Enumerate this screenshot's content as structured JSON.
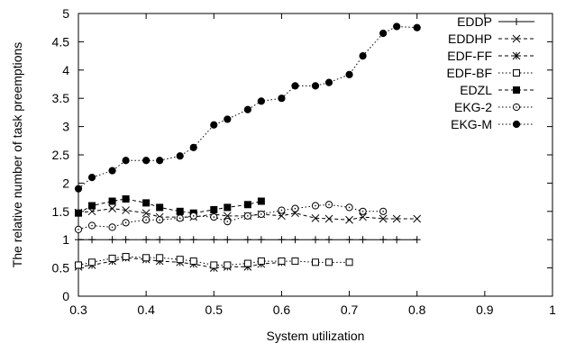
{
  "chart_data": {
    "type": "line",
    "xlabel": "System utilization",
    "ylabel": "The relative number of task preemptions",
    "xlim": [
      0.3,
      1.0
    ],
    "ylim": [
      0,
      5
    ],
    "grid": false,
    "legend_position": "top-right",
    "x_ticks": [
      "0.3",
      "0.4",
      "0.5",
      "0.6",
      "0.7",
      "0.8",
      "0.9",
      "1"
    ],
    "y_ticks": [
      "0",
      "0.5",
      "1",
      "1.5",
      "2",
      "2.5",
      "3",
      "3.5",
      "4",
      "4.5",
      "5"
    ],
    "series": [
      {
        "name": "EDDP",
        "marker": "plus",
        "dash": "solid",
        "points": [
          [
            0.3,
            1
          ],
          [
            0.32,
            1
          ],
          [
            0.35,
            1
          ],
          [
            0.37,
            1
          ],
          [
            0.4,
            1
          ],
          [
            0.42,
            1
          ],
          [
            0.45,
            1
          ],
          [
            0.47,
            1
          ],
          [
            0.5,
            1
          ],
          [
            0.52,
            1
          ],
          [
            0.55,
            1
          ],
          [
            0.57,
            1
          ],
          [
            0.6,
            1
          ],
          [
            0.62,
            1
          ],
          [
            0.65,
            1
          ],
          [
            0.67,
            1
          ],
          [
            0.7,
            1
          ],
          [
            0.72,
            1
          ],
          [
            0.75,
            1
          ],
          [
            0.77,
            1
          ],
          [
            0.8,
            1
          ]
        ]
      },
      {
        "name": "EDDHP",
        "marker": "cross",
        "dash": "dashed",
        "points": [
          [
            0.3,
            1.48
          ],
          [
            0.32,
            1.5
          ],
          [
            0.35,
            1.55
          ],
          [
            0.37,
            1.52
          ],
          [
            0.4,
            1.47
          ],
          [
            0.42,
            1.4
          ],
          [
            0.45,
            1.4
          ],
          [
            0.47,
            1.4
          ],
          [
            0.5,
            1.45
          ],
          [
            0.52,
            1.42
          ],
          [
            0.55,
            1.42
          ],
          [
            0.57,
            1.45
          ],
          [
            0.6,
            1.42
          ],
          [
            0.62,
            1.47
          ],
          [
            0.65,
            1.38
          ],
          [
            0.67,
            1.37
          ],
          [
            0.7,
            1.35
          ],
          [
            0.72,
            1.4
          ],
          [
            0.75,
            1.37
          ],
          [
            0.77,
            1.37
          ],
          [
            0.8,
            1.37
          ]
        ]
      },
      {
        "name": "EDF-FF",
        "marker": "asterisk",
        "dash": "dashed",
        "points": [
          [
            0.3,
            0.52
          ],
          [
            0.32,
            0.55
          ],
          [
            0.35,
            0.62
          ],
          [
            0.37,
            0.68
          ],
          [
            0.4,
            0.65
          ],
          [
            0.42,
            0.62
          ],
          [
            0.45,
            0.6
          ],
          [
            0.47,
            0.57
          ],
          [
            0.5,
            0.5
          ],
          [
            0.52,
            0.52
          ],
          [
            0.55,
            0.52
          ],
          [
            0.57,
            0.57
          ],
          [
            0.6,
            0.6
          ]
        ]
      },
      {
        "name": "EDF-BF",
        "marker": "open-square",
        "dash": "dotted",
        "points": [
          [
            0.3,
            0.55
          ],
          [
            0.32,
            0.6
          ],
          [
            0.35,
            0.67
          ],
          [
            0.37,
            0.7
          ],
          [
            0.4,
            0.68
          ],
          [
            0.42,
            0.68
          ],
          [
            0.45,
            0.65
          ],
          [
            0.47,
            0.62
          ],
          [
            0.5,
            0.55
          ],
          [
            0.52,
            0.55
          ],
          [
            0.55,
            0.58
          ],
          [
            0.57,
            0.62
          ],
          [
            0.6,
            0.62
          ],
          [
            0.62,
            0.62
          ],
          [
            0.65,
            0.6
          ],
          [
            0.67,
            0.6
          ],
          [
            0.7,
            0.6
          ]
        ]
      },
      {
        "name": "EDZL",
        "marker": "filled-square",
        "dash": "dashed",
        "points": [
          [
            0.3,
            1.47
          ],
          [
            0.32,
            1.6
          ],
          [
            0.35,
            1.68
          ],
          [
            0.37,
            1.72
          ],
          [
            0.4,
            1.65
          ],
          [
            0.42,
            1.57
          ],
          [
            0.45,
            1.5
          ],
          [
            0.47,
            1.47
          ],
          [
            0.5,
            1.53
          ],
          [
            0.52,
            1.57
          ],
          [
            0.55,
            1.62
          ],
          [
            0.57,
            1.68
          ]
        ]
      },
      {
        "name": "EKG-2",
        "marker": "open-circle",
        "dash": "dotted",
        "points": [
          [
            0.3,
            1.18
          ],
          [
            0.32,
            1.25
          ],
          [
            0.35,
            1.22
          ],
          [
            0.37,
            1.3
          ],
          [
            0.4,
            1.35
          ],
          [
            0.42,
            1.35
          ],
          [
            0.45,
            1.38
          ],
          [
            0.47,
            1.42
          ],
          [
            0.5,
            1.4
          ],
          [
            0.52,
            1.32
          ],
          [
            0.55,
            1.42
          ],
          [
            0.57,
            1.45
          ],
          [
            0.6,
            1.52
          ],
          [
            0.62,
            1.55
          ],
          [
            0.65,
            1.6
          ],
          [
            0.67,
            1.62
          ],
          [
            0.7,
            1.57
          ],
          [
            0.72,
            1.5
          ],
          [
            0.75,
            1.5
          ]
        ]
      },
      {
        "name": "EKG-M",
        "marker": "filled-circle",
        "dash": "dotted",
        "points": [
          [
            0.3,
            1.9
          ],
          [
            0.32,
            2.1
          ],
          [
            0.35,
            2.22
          ],
          [
            0.37,
            2.4
          ],
          [
            0.4,
            2.4
          ],
          [
            0.42,
            2.4
          ],
          [
            0.45,
            2.48
          ],
          [
            0.47,
            2.63
          ],
          [
            0.5,
            3.03
          ],
          [
            0.52,
            3.13
          ],
          [
            0.55,
            3.3
          ],
          [
            0.57,
            3.45
          ],
          [
            0.6,
            3.5
          ],
          [
            0.62,
            3.72
          ],
          [
            0.65,
            3.72
          ],
          [
            0.67,
            3.78
          ],
          [
            0.7,
            3.92
          ],
          [
            0.72,
            4.25
          ],
          [
            0.75,
            4.65
          ],
          [
            0.77,
            4.77
          ],
          [
            0.8,
            4.75
          ]
        ]
      }
    ]
  }
}
